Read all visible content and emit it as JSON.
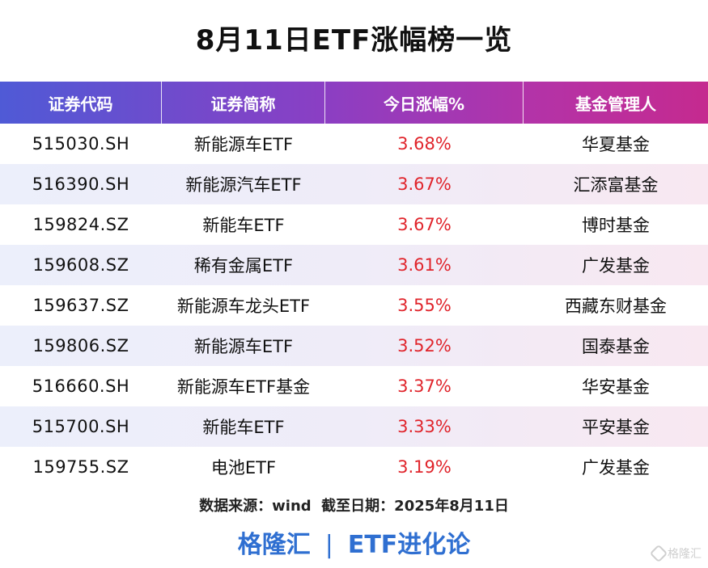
{
  "title": "8月11日ETF涨幅榜一览",
  "table": {
    "headers": [
      "证券代码",
      "证券简称",
      "今日涨幅%",
      "基金管理人"
    ],
    "rows": [
      {
        "code": "515030.SH",
        "name": "新能源车ETF",
        "change": "3.68%",
        "manager": "华夏基金"
      },
      {
        "code": "516390.SH",
        "name": "新能源汽车ETF",
        "change": "3.67%",
        "manager": "汇添富基金"
      },
      {
        "code": "159824.SZ",
        "name": "新能车ETF",
        "change": "3.67%",
        "manager": "博时基金"
      },
      {
        "code": "159608.SZ",
        "name": "稀有金属ETF",
        "change": "3.61%",
        "manager": "广发基金"
      },
      {
        "code": "159637.SZ",
        "name": "新能源车龙头ETF",
        "change": "3.55%",
        "manager": "西藏东财基金"
      },
      {
        "code": "159806.SZ",
        "name": "新能源车ETF",
        "change": "3.52%",
        "manager": "国泰基金"
      },
      {
        "code": "516660.SH",
        "name": "新能源车ETF基金",
        "change": "3.37%",
        "manager": "华安基金"
      },
      {
        "code": "515700.SH",
        "name": "新能车ETF",
        "change": "3.33%",
        "manager": "平安基金"
      },
      {
        "code": "159755.SZ",
        "name": "电池ETF",
        "change": "3.19%",
        "manager": "广发基金"
      }
    ]
  },
  "source_line": "数据来源：wind  截至日期：2025年8月11日",
  "brand": {
    "left": "格隆汇",
    "separator": "|",
    "right": "ETF进化论"
  },
  "watermark": "格隆汇",
  "colors": {
    "header_gradient_start": "#4f5ad6",
    "header_gradient_end": "#c52a8f",
    "change_red": "#e0242b",
    "brand_blue": "#2f6fd1"
  }
}
